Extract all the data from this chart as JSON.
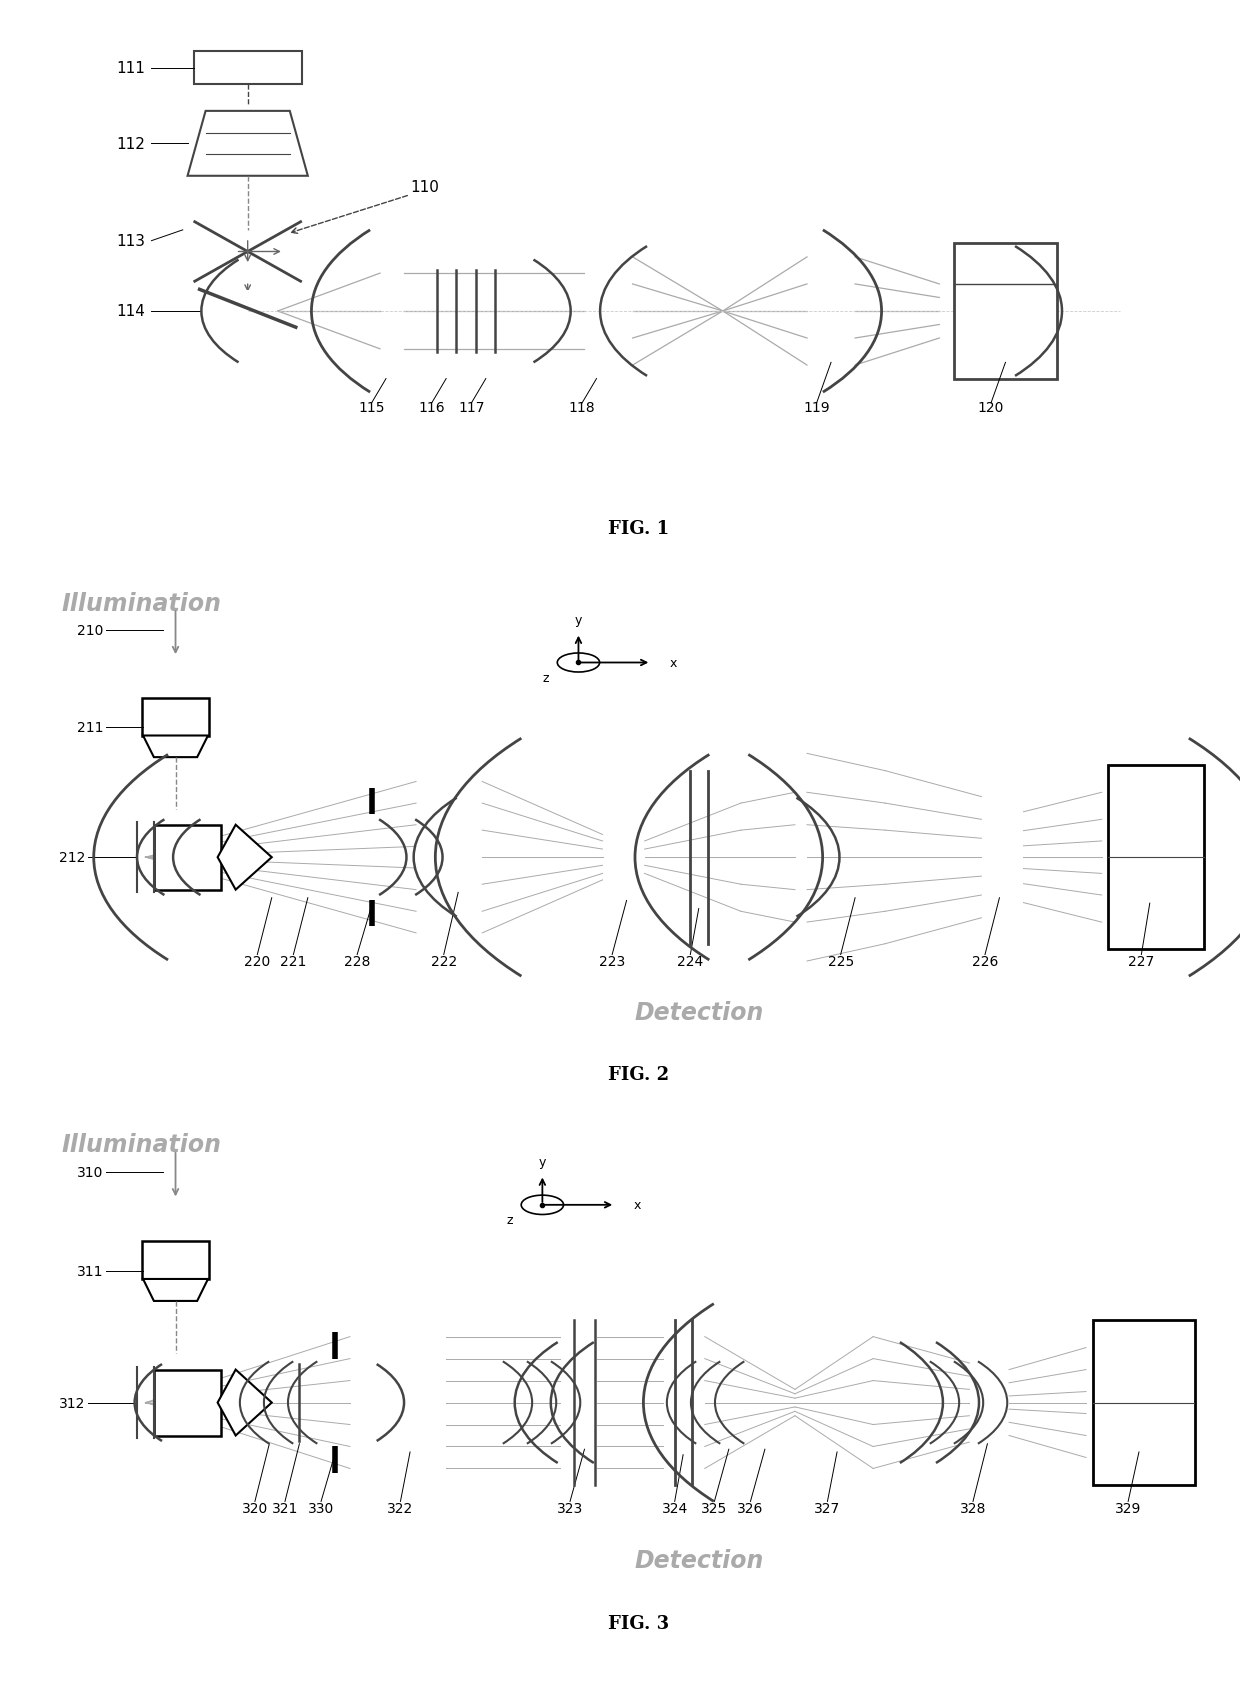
{
  "bg_color": "#ffffff",
  "lc": "#444444",
  "bc": "#aaaaaa",
  "illum_color": "#aaaaaa",
  "detect_color": "#aaaaaa",
  "fig1_title": "FIG. 1",
  "fig2_title": "FIG. 2",
  "fig3_title": "FIG. 3"
}
